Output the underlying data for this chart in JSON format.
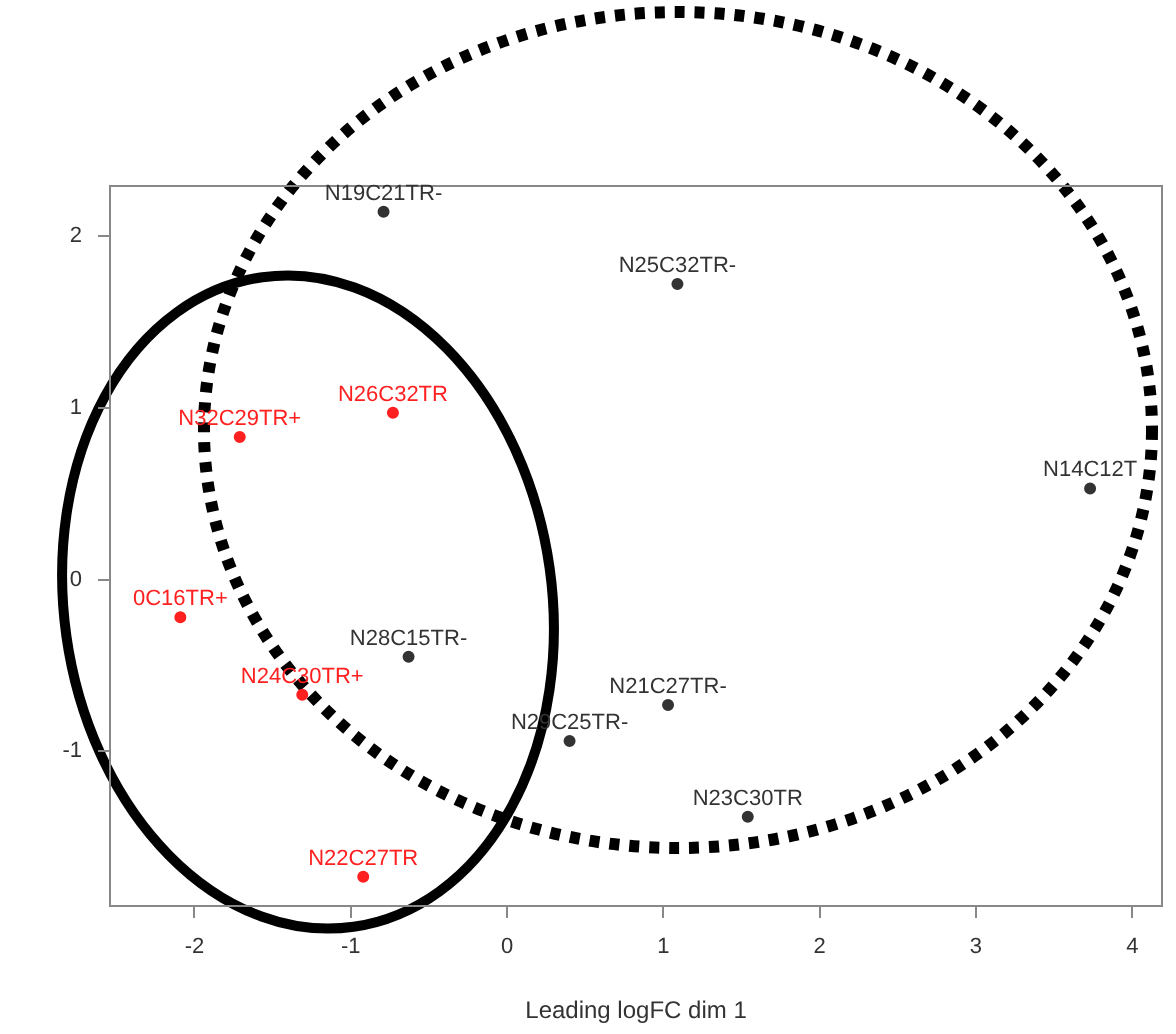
{
  "chart_data": {
    "type": "scatter",
    "xlabel": "Leading logFC dim 1",
    "xlim": [
      -2.54,
      4.19
    ],
    "ylim": [
      -1.9,
      2.29
    ],
    "xticks": [
      -2,
      -1,
      0,
      1,
      2,
      3,
      4
    ],
    "yticks": [
      -1,
      0,
      1,
      2
    ],
    "grid": false,
    "legend": false,
    "marker": "circle",
    "series": [
      {
        "color": "#ff2020",
        "x": [
          -1.71,
          -0.73,
          -2.09,
          -1.31,
          -0.92
        ],
        "values": [
          0.83,
          0.97,
          -0.22,
          -0.67,
          -1.73
        ],
        "value_labels": [
          "N32C29TR+",
          "N26C32TR",
          "0C16TR+",
          "N24C30TR+",
          "N22C27TR"
        ]
      },
      {
        "color": "#333333",
        "x": [
          -0.79,
          1.09,
          3.73,
          -0.63,
          1.03,
          0.4,
          1.54
        ],
        "values": [
          2.14,
          1.72,
          0.53,
          -0.45,
          -0.73,
          -0.94,
          -1.38
        ],
        "value_labels": [
          "N19C21TR-",
          "N25C32TR-",
          "N14C12T",
          "N28C15TR-",
          "N21C27TR-",
          "N29C25TR-",
          "N23C30TR"
        ]
      }
    ]
  }
}
